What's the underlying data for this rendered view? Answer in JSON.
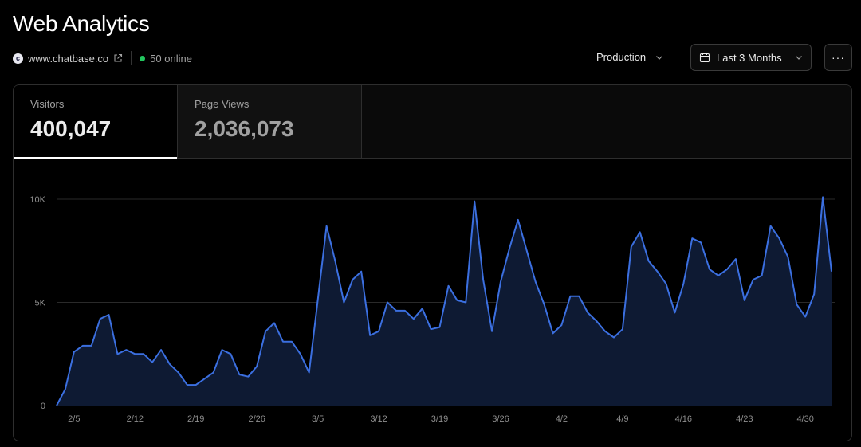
{
  "header": {
    "title": "Web Analytics",
    "site_logo_letter": "c",
    "site": "www.chatbase.co",
    "online": "50 online",
    "environment": "Production",
    "range": "Last 3 Months",
    "more": "···"
  },
  "tabs": [
    {
      "label": "Visitors",
      "value": "400,047"
    },
    {
      "label": "Page Views",
      "value": "2,036,073"
    }
  ],
  "colors": {
    "line": "#3b6fe0",
    "fill": "#0e1a33",
    "online_dot": "#22c55e"
  },
  "icons": [
    "external-link-icon",
    "chevron-down-icon",
    "calendar-icon",
    "more-icon"
  ],
  "chart_data": {
    "type": "area",
    "series": [
      {
        "values": [
          0,
          800,
          2600,
          2900,
          2900,
          4200,
          4400,
          2500,
          2700,
          2500,
          2500,
          2100,
          2700,
          2000,
          1600,
          1000,
          1000,
          1300,
          1600,
          2700,
          2500,
          1500,
          1400,
          1900,
          3600,
          4000,
          3100,
          3100,
          2500,
          1600,
          5100,
          8700,
          7000,
          5000,
          6100,
          6500,
          3400,
          3600,
          5000,
          4600,
          4600,
          4200,
          4700,
          3700,
          3800,
          5800,
          5100,
          5000,
          9900,
          6100,
          3600,
          6000,
          7600,
          9000,
          7500,
          6000,
          4900,
          3500,
          3900,
          5300,
          5300,
          4500,
          4100,
          3600,
          3300,
          3700,
          7700,
          8400,
          7000,
          6500,
          5900,
          4500,
          5900,
          8100,
          7900,
          6600,
          6300,
          6600,
          7100,
          5100,
          6100,
          6300,
          8700,
          8100,
          7200,
          4900,
          4300,
          5400,
          10100,
          6500
        ]
      }
    ],
    "x_ticks": [
      "2/5",
      "2/12",
      "2/19",
      "2/26",
      "3/5",
      "3/12",
      "3/19",
      "3/26",
      "4/2",
      "4/9",
      "4/16",
      "4/23",
      "4/30"
    ],
    "y_ticks": [
      "0",
      "5K",
      "10K"
    ],
    "ylim": [
      0,
      10000
    ],
    "grid": true
  }
}
